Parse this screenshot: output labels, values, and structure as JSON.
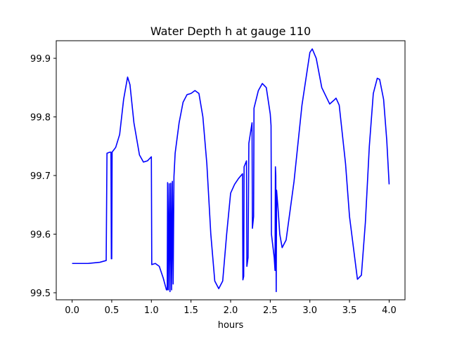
{
  "chart_data": {
    "type": "line",
    "title": "Water Depth h at gauge 110",
    "xlabel": "hours",
    "ylabel": "",
    "xlim": [
      -0.2,
      4.2
    ],
    "ylim": [
      99.488,
      99.93
    ],
    "x_ticks": [
      0.0,
      0.5,
      1.0,
      1.5,
      2.0,
      2.5,
      3.0,
      3.5,
      4.0
    ],
    "x_tick_labels": [
      "0.0",
      "0.5",
      "1.0",
      "1.5",
      "2.0",
      "2.5",
      "3.0",
      "3.5",
      "4.0"
    ],
    "y_ticks": [
      99.5,
      99.6,
      99.7,
      99.8,
      99.9
    ],
    "y_tick_labels": [
      "99.5",
      "99.6",
      "99.7",
      "99.8",
      "99.9"
    ],
    "grid": false,
    "line_color": "#0000ff",
    "series": [
      {
        "points": [
          [
            0.0,
            99.55
          ],
          [
            0.2,
            99.55
          ],
          [
            0.35,
            99.552
          ],
          [
            0.43,
            99.555
          ],
          [
            0.44,
            99.738
          ],
          [
            0.48,
            99.74
          ],
          [
            0.49,
            99.74
          ],
          [
            0.495,
            99.558
          ],
          [
            0.5,
            99.558
          ],
          [
            0.505,
            99.74
          ],
          [
            0.55,
            99.748
          ],
          [
            0.6,
            99.77
          ],
          [
            0.65,
            99.83
          ],
          [
            0.7,
            99.868
          ],
          [
            0.73,
            99.855
          ],
          [
            0.78,
            99.79
          ],
          [
            0.85,
            99.735
          ],
          [
            0.9,
            99.723
          ],
          [
            0.95,
            99.725
          ],
          [
            1.0,
            99.732
          ],
          [
            1.005,
            99.548
          ],
          [
            1.05,
            99.55
          ],
          [
            1.1,
            99.545
          ],
          [
            1.15,
            99.525
          ],
          [
            1.19,
            99.505
          ],
          [
            1.2,
            99.505
          ],
          [
            1.205,
            99.688
          ],
          [
            1.215,
            99.505
          ],
          [
            1.225,
            99.686
          ],
          [
            1.235,
            99.502
          ],
          [
            1.245,
            99.687
          ],
          [
            1.255,
            99.505
          ],
          [
            1.265,
            99.69
          ],
          [
            1.275,
            99.515
          ],
          [
            1.285,
            99.698
          ],
          [
            1.3,
            99.738
          ],
          [
            1.35,
            99.79
          ],
          [
            1.4,
            99.825
          ],
          [
            1.45,
            99.838
          ],
          [
            1.5,
            99.84
          ],
          [
            1.55,
            99.845
          ],
          [
            1.6,
            99.84
          ],
          [
            1.65,
            99.8
          ],
          [
            1.7,
            99.72
          ],
          [
            1.75,
            99.6
          ],
          [
            1.8,
            99.52
          ],
          [
            1.85,
            99.507
          ],
          [
            1.9,
            99.52
          ],
          [
            1.95,
            99.6
          ],
          [
            2.0,
            99.67
          ],
          [
            2.05,
            99.685
          ],
          [
            2.1,
            99.695
          ],
          [
            2.15,
            99.703
          ],
          [
            2.155,
            99.522
          ],
          [
            2.165,
            99.528
          ],
          [
            2.17,
            99.715
          ],
          [
            2.2,
            99.725
          ],
          [
            2.205,
            99.545
          ],
          [
            2.22,
            99.56
          ],
          [
            2.23,
            99.755
          ],
          [
            2.27,
            99.79
          ],
          [
            2.275,
            99.61
          ],
          [
            2.29,
            99.63
          ],
          [
            2.295,
            99.815
          ],
          [
            2.35,
            99.845
          ],
          [
            2.4,
            99.857
          ],
          [
            2.45,
            99.85
          ],
          [
            2.5,
            99.805
          ],
          [
            2.51,
            99.785
          ],
          [
            2.515,
            99.6
          ],
          [
            2.55,
            99.56
          ],
          [
            2.56,
            99.538
          ],
          [
            2.565,
            99.715
          ],
          [
            2.57,
            99.7
          ],
          [
            2.575,
            99.502
          ],
          [
            2.58,
            99.675
          ],
          [
            2.6,
            99.64
          ],
          [
            2.62,
            99.6
          ],
          [
            2.65,
            99.577
          ],
          [
            2.7,
            99.59
          ],
          [
            2.8,
            99.69
          ],
          [
            2.9,
            99.82
          ],
          [
            3.0,
            99.91
          ],
          [
            3.03,
            99.916
          ],
          [
            3.08,
            99.9
          ],
          [
            3.15,
            99.85
          ],
          [
            3.25,
            99.822
          ],
          [
            3.3,
            99.828
          ],
          [
            3.33,
            99.832
          ],
          [
            3.37,
            99.82
          ],
          [
            3.45,
            99.72
          ],
          [
            3.5,
            99.63
          ],
          [
            3.6,
            99.523
          ],
          [
            3.65,
            99.53
          ],
          [
            3.7,
            99.62
          ],
          [
            3.75,
            99.75
          ],
          [
            3.8,
            99.84
          ],
          [
            3.85,
            99.866
          ],
          [
            3.88,
            99.864
          ],
          [
            3.93,
            99.83
          ],
          [
            3.97,
            99.76
          ],
          [
            4.0,
            99.685
          ]
        ]
      }
    ]
  }
}
